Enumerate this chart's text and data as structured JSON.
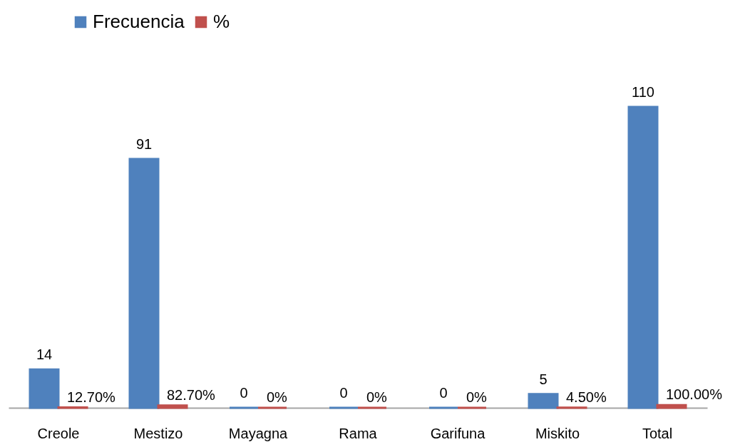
{
  "chart_data": {
    "type": "bar",
    "categories": [
      "Creole",
      "Mestizo",
      "Mayagna",
      "Rama",
      "Garifuna",
      "Miskito",
      "Total"
    ],
    "series": [
      {
        "name": "Frecuencia",
        "color": "#4f81bd",
        "values": [
          14,
          91,
          0,
          0,
          0,
          5,
          110
        ],
        "value_labels": [
          "14",
          "91",
          "0",
          "0",
          "0",
          "5",
          "110"
        ]
      },
      {
        "name": "%",
        "color": "#c0504d",
        "values": [
          0.127,
          0.827,
          0,
          0,
          0,
          0.045,
          1
        ],
        "value_labels": [
          "12.70%",
          "82.70%",
          "0%",
          "0%",
          "0%",
          "4.50%",
          "100.00%"
        ]
      }
    ],
    "legend": "top left"
  }
}
